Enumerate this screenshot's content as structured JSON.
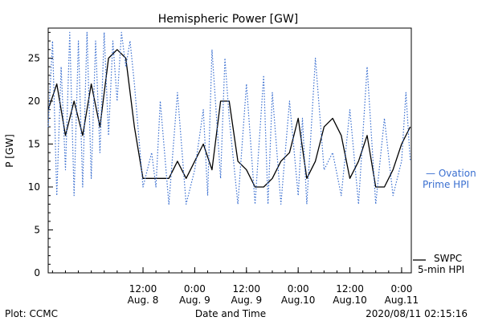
{
  "chart_data": {
    "type": "line",
    "title": "Hemispheric Power [GW]",
    "xlabel": "Date and Time",
    "ylabel": "P [GW]",
    "xlim": [
      "2020-08-07T14:00",
      "2020-08-11T02:15"
    ],
    "ylim": [
      0,
      28.5
    ],
    "yticks": [
      0,
      5,
      10,
      15,
      20,
      25
    ],
    "xticks": [
      {
        "t": "2020-08-08T12:00",
        "label": [
          "12:00",
          "Aug. 8"
        ]
      },
      {
        "t": "2020-08-09T00:00",
        "label": [
          "0:00",
          "Aug. 9"
        ]
      },
      {
        "t": "2020-08-09T12:00",
        "label": [
          "12:00",
          "Aug. 9"
        ]
      },
      {
        "t": "2020-08-10T00:00",
        "label": [
          "0:00",
          "Aug.10"
        ]
      },
      {
        "t": "2020-08-10T12:00",
        "label": [
          "12:00",
          "Aug.10"
        ]
      },
      {
        "t": "2020-08-11T00:00",
        "label": [
          "0:00",
          "Aug.11"
        ]
      }
    ],
    "grid": false,
    "legend_position": "right",
    "series": [
      {
        "name": "SWPC 5-min HPI",
        "legend_lines": [
          "SWPC",
          "5-min HPI"
        ],
        "color": "#000000",
        "style": "solid",
        "x": [
          "2020-08-07T14:00",
          "2020-08-07T16:00",
          "2020-08-07T18:00",
          "2020-08-07T20:00",
          "2020-08-07T22:00",
          "2020-08-08T00:00",
          "2020-08-08T02:00",
          "2020-08-08T04:00",
          "2020-08-08T06:00",
          "2020-08-08T08:00",
          "2020-08-08T10:00",
          "2020-08-08T12:00",
          "2020-08-08T14:00",
          "2020-08-08T16:00",
          "2020-08-08T18:00",
          "2020-08-08T20:00",
          "2020-08-08T22:00",
          "2020-08-09T00:00",
          "2020-08-09T02:00",
          "2020-08-09T04:00",
          "2020-08-09T06:00",
          "2020-08-09T08:00",
          "2020-08-09T10:00",
          "2020-08-09T12:00",
          "2020-08-09T14:00",
          "2020-08-09T16:00",
          "2020-08-09T18:00",
          "2020-08-09T20:00",
          "2020-08-09T22:00",
          "2020-08-10T00:00",
          "2020-08-10T02:00",
          "2020-08-10T04:00",
          "2020-08-10T06:00",
          "2020-08-10T08:00",
          "2020-08-10T10:00",
          "2020-08-10T12:00",
          "2020-08-10T14:00",
          "2020-08-10T16:00",
          "2020-08-10T18:00",
          "2020-08-10T20:00",
          "2020-08-10T22:00",
          "2020-08-11T00:00",
          "2020-08-11T02:00"
        ],
        "y": [
          19,
          22,
          16,
          20,
          16,
          22,
          17,
          25,
          26,
          25,
          17,
          11,
          11,
          11,
          11,
          13,
          11,
          13,
          15,
          12,
          20,
          20,
          13,
          12,
          10,
          10,
          11,
          13,
          14,
          18,
          11,
          13,
          17,
          18,
          16,
          11,
          13,
          16,
          10,
          10,
          12,
          15,
          17
        ]
      },
      {
        "name": "Ovation Prime HPI",
        "legend_lines": [
          "— Ovation",
          "Prime HPI"
        ],
        "color": "#3a6fd0",
        "style": "dotted",
        "x": [
          "2020-08-07T14:00",
          "2020-08-07T15:00",
          "2020-08-07T16:00",
          "2020-08-07T17:00",
          "2020-08-07T18:00",
          "2020-08-07T19:00",
          "2020-08-07T20:00",
          "2020-08-07T21:00",
          "2020-08-07T22:00",
          "2020-08-07T23:00",
          "2020-08-08T00:00",
          "2020-08-08T01:00",
          "2020-08-08T02:00",
          "2020-08-08T03:00",
          "2020-08-08T04:00",
          "2020-08-08T05:00",
          "2020-08-08T06:00",
          "2020-08-08T07:00",
          "2020-08-08T08:00",
          "2020-08-08T09:00",
          "2020-08-08T10:00",
          "2020-08-08T12:00",
          "2020-08-08T14:00",
          "2020-08-08T15:00",
          "2020-08-08T16:00",
          "2020-08-08T18:00",
          "2020-08-08T20:00",
          "2020-08-08T22:00",
          "2020-08-09T00:00",
          "2020-08-09T02:00",
          "2020-08-09T03:00",
          "2020-08-09T04:00",
          "2020-08-09T06:00",
          "2020-08-09T07:00",
          "2020-08-09T08:00",
          "2020-08-09T10:00",
          "2020-08-09T12:00",
          "2020-08-09T14:00",
          "2020-08-09T16:00",
          "2020-08-09T17:00",
          "2020-08-09T18:00",
          "2020-08-09T20:00",
          "2020-08-09T22:00",
          "2020-08-10T00:00",
          "2020-08-10T01:00",
          "2020-08-10T02:00",
          "2020-08-10T04:00",
          "2020-08-10T06:00",
          "2020-08-10T08:00",
          "2020-08-10T10:00",
          "2020-08-10T12:00",
          "2020-08-10T14:00",
          "2020-08-10T16:00",
          "2020-08-10T18:00",
          "2020-08-10T20:00",
          "2020-08-10T22:00",
          "2020-08-11T00:00",
          "2020-08-11T01:00",
          "2020-08-11T02:00"
        ],
        "y": [
          17,
          27,
          9,
          24,
          12,
          28,
          9,
          27,
          10,
          28,
          11,
          27,
          14,
          28,
          16,
          27,
          20,
          28,
          24,
          27,
          22,
          10,
          14,
          10,
          20,
          8,
          21,
          8,
          12,
          19,
          9,
          26,
          11,
          25,
          18,
          8,
          22,
          8,
          23,
          8,
          21,
          8,
          20,
          9,
          18,
          8,
          25,
          12,
          14,
          9,
          19,
          8,
          24,
          8,
          18,
          9,
          13,
          21,
          13
        ]
      }
    ]
  },
  "footer": {
    "source": "Plot: CCMC",
    "timestamp": "2020/08/11 02:15:16"
  }
}
